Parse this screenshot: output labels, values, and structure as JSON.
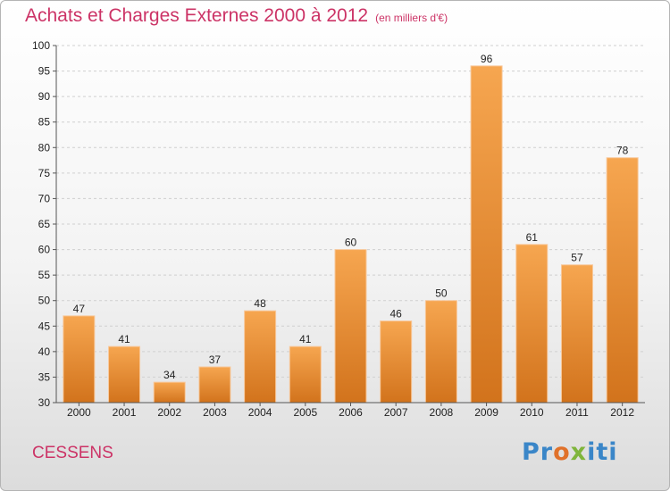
{
  "header": {
    "title": "Achats et Charges Externes 2000 à 2012",
    "subtitle": "(en milliers d'€)"
  },
  "footer": {
    "commune": "CESSENS",
    "logo_text": "Proxiti"
  },
  "colors": {
    "title": "#cc3366",
    "bar_light": "#f6a650",
    "bar_dark": "#d2731c"
  },
  "chart_data": {
    "type": "bar",
    "title": "Achats et Charges Externes 2000 à 2012",
    "subtitle": "(en milliers d'€)",
    "xlabel": "",
    "ylabel": "",
    "categories": [
      "2000",
      "2001",
      "2002",
      "2003",
      "2004",
      "2005",
      "2006",
      "2007",
      "2008",
      "2009",
      "2010",
      "2011",
      "2012"
    ],
    "values": [
      47,
      41,
      34,
      37,
      48,
      41,
      60,
      46,
      50,
      96,
      61,
      57,
      78
    ],
    "ylim": [
      30,
      100
    ],
    "yticks": [
      30,
      35,
      40,
      45,
      50,
      55,
      60,
      65,
      70,
      75,
      80,
      85,
      90,
      95,
      100
    ],
    "grid": true
  }
}
